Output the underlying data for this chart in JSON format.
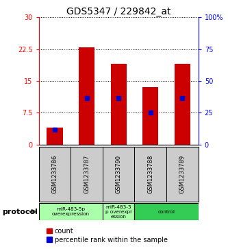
{
  "title": "GDS5347 / 229842_at",
  "samples": [
    "GSM1233786",
    "GSM1233787",
    "GSM1233790",
    "GSM1233788",
    "GSM1233789"
  ],
  "red_bar_heights": [
    4.0,
    23.0,
    19.0,
    13.5,
    19.0
  ],
  "blue_mark_positions": [
    3.5,
    11.0,
    11.0,
    7.5,
    11.0
  ],
  "ylim_left": [
    0,
    30
  ],
  "ylim_right": [
    0,
    100
  ],
  "yticks_left": [
    0,
    7.5,
    15,
    22.5,
    30
  ],
  "ytick_labels_left": [
    "0",
    "7.5",
    "15",
    "22.5",
    "30"
  ],
  "yticks_right": [
    0,
    25,
    50,
    75,
    100
  ],
  "ytick_labels_right": [
    "0",
    "25",
    "50",
    "75",
    "100%"
  ],
  "bar_color": "#cc0000",
  "blue_color": "#0000cc",
  "bar_width": 0.5,
  "protocol_labels": [
    "miR-483-5p\noverexpression",
    "miR-483-3\np overexpr\nession",
    "control"
  ],
  "protocol_groups": [
    2,
    1,
    2
  ],
  "protocol_light_green": "#aaffaa",
  "protocol_dark_green": "#33cc55",
  "label_area_color": "#cccccc",
  "legend_count": "count",
  "legend_percentile": "percentile rank within the sample",
  "background_color": "#ffffff",
  "title_fontsize": 10,
  "tick_fontsize": 7,
  "legend_fontsize": 7,
  "sample_fontsize": 6
}
